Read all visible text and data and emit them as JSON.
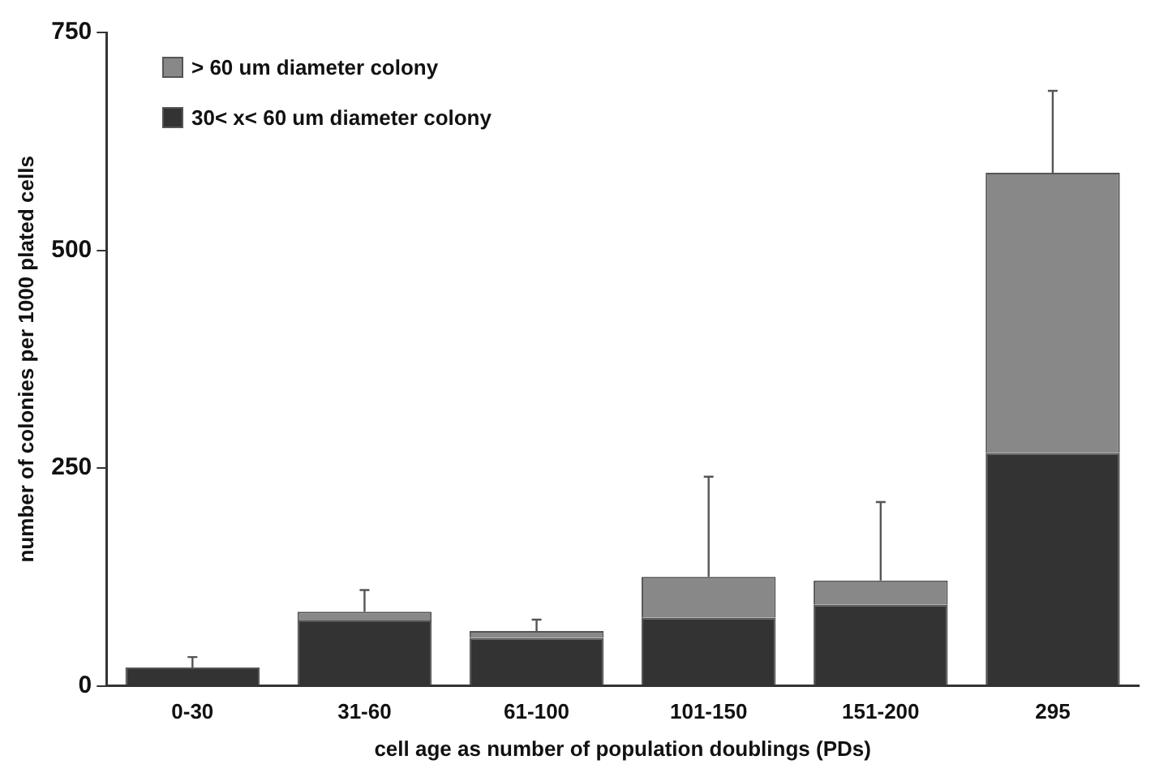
{
  "chart_data": {
    "type": "bar",
    "stacked": true,
    "xlabel": "cell age as number of population doublings (PDs)",
    "ylabel": "number of colonies per 1000 plated cells",
    "categories": [
      "0-30",
      "31-60",
      "61-100",
      "101-150",
      "151-200",
      "295"
    ],
    "series": [
      {
        "name": "30< x< 60 um diameter colony",
        "color": "#333333",
        "values": [
          21,
          75,
          55,
          78,
          93,
          267
        ]
      },
      {
        "name": "> 60 um diameter colony",
        "color": "#888888",
        "values": [
          0,
          10,
          8,
          47,
          28,
          322
        ],
        "errors": [
          [
            21,
            33
          ],
          [
            85,
            110
          ],
          [
            63,
            76
          ],
          [
            125,
            240
          ],
          [
            121,
            211
          ],
          [
            589,
            683
          ]
        ]
      }
    ],
    "ylim": [
      0,
      750
    ],
    "yticks": [
      0,
      250,
      500,
      750
    ],
    "grid": false,
    "legend": "top left"
  }
}
